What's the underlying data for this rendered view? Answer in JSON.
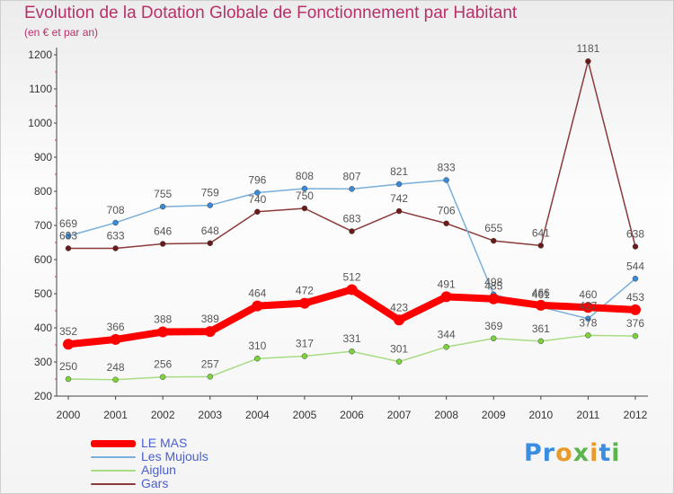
{
  "title": "Evolution de la Dotation Globale de Fonctionnement par Habitant",
  "subtitle": "(en € et par an)",
  "logo": {
    "text": "Proxiti",
    "letters": [
      {
        "ch": "P",
        "color": "#3a8de0"
      },
      {
        "ch": "r",
        "color": "#3a8de0"
      },
      {
        "ch": "o",
        "color": "#e89a2c"
      },
      {
        "ch": "x",
        "color": "#5bb54a"
      },
      {
        "ch": "i",
        "color": "#e89a2c"
      },
      {
        "ch": "t",
        "color": "#3a8de0"
      },
      {
        "ch": "i",
        "color": "#5bb54a"
      }
    ]
  },
  "chart_data": {
    "type": "line",
    "title": "Evolution de la Dotation Globale de Fonctionnement par Habitant",
    "subtitle": "(en € et par an)",
    "x": [
      "2000",
      "2001",
      "2002",
      "2003",
      "2004",
      "2005",
      "2006",
      "2007",
      "2008",
      "2009",
      "2010",
      "2011",
      "2012"
    ],
    "ylim": [
      200,
      1200
    ],
    "yticks": [
      200,
      300,
      400,
      500,
      600,
      700,
      800,
      900,
      1000,
      1100,
      1200
    ],
    "grid": false,
    "legend_position": "bottom-left",
    "series": [
      {
        "name": "LE MAS",
        "color": "#ff0000",
        "point_color": "#ff0000",
        "width": 8,
        "values": [
          352,
          366,
          388,
          389,
          464,
          472,
          512,
          423,
          491,
          485,
          466,
          460,
          453
        ],
        "labels": [
          "352",
          "366",
          "388",
          "389",
          "464",
          "472",
          "512",
          "423",
          "491",
          "485",
          "466",
          "460",
          "453"
        ]
      },
      {
        "name": "Les Mujouls",
        "color": "#7aaedb",
        "point_color": "#3a8ad6",
        "width": 1.5,
        "values": [
          669,
          708,
          755,
          759,
          796,
          808,
          807,
          821,
          833,
          498,
          461,
          427,
          544
        ],
        "labels": [
          "669",
          "708",
          "755",
          "759",
          "796",
          "808",
          "807",
          "821",
          "833",
          "498",
          "461",
          "427",
          "544"
        ]
      },
      {
        "name": "Aiglun",
        "color": "#a8dc84",
        "point_color": "#7bd23a",
        "width": 1.5,
        "values": [
          250,
          248,
          256,
          257,
          310,
          317,
          331,
          301,
          344,
          369,
          361,
          378,
          376
        ],
        "labels": [
          "250",
          "248",
          "256",
          "257",
          "310",
          "317",
          "331",
          "301",
          "344",
          "369",
          "361",
          "378",
          "376"
        ]
      },
      {
        "name": "Gars",
        "color": "#8a3a3a",
        "point_color": "#6b1a1a",
        "width": 1.5,
        "values": [
          633,
          633,
          646,
          648,
          740,
          750,
          683,
          742,
          706,
          655,
          641,
          1181,
          638
        ],
        "labels": [
          "633",
          "633",
          "646",
          "648",
          "740",
          "750",
          "683",
          "742",
          "706",
          "655",
          "641",
          "1181",
          "638"
        ]
      }
    ]
  }
}
